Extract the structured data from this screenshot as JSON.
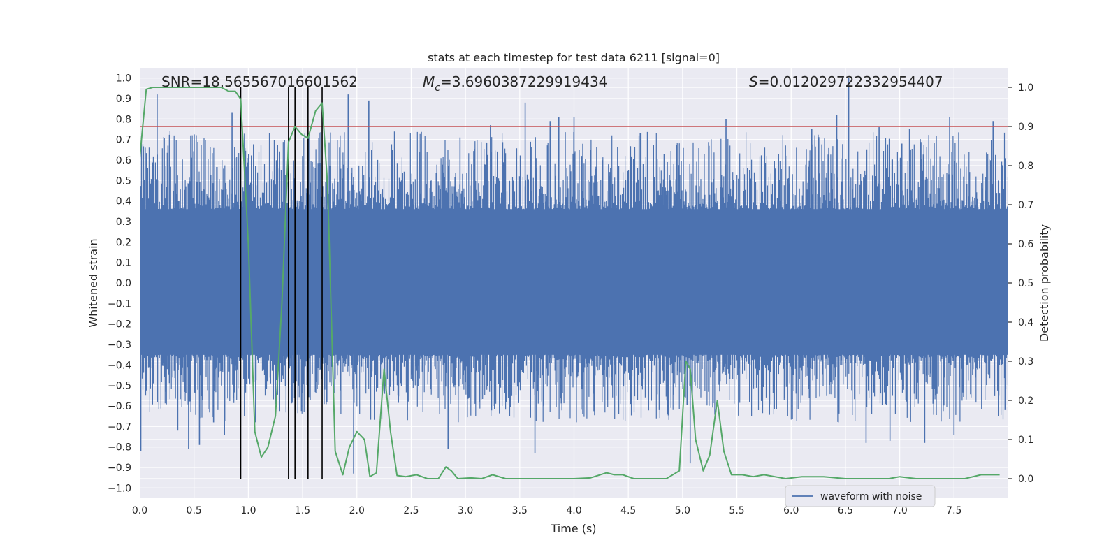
{
  "chart_data": {
    "type": "line",
    "title": "stats at each timestep for test data 6211 [signal=0]",
    "xlabel": "Time (s)",
    "ylabel_left": "Whitened strain",
    "ylabel_right": "Detection probability",
    "xlim": [
      0.0,
      8.0
    ],
    "ylim_left": [
      -1.05,
      1.05
    ],
    "ylim_right": [
      -0.05,
      1.05
    ],
    "grid": true,
    "x_ticks": [
      "0.0",
      "0.5",
      "1.0",
      "1.5",
      "2.0",
      "2.5",
      "3.0",
      "3.5",
      "4.0",
      "4.5",
      "5.0",
      "5.5",
      "6.0",
      "6.5",
      "7.0",
      "7.5"
    ],
    "y_ticks_left": [
      "1.0",
      "0.9",
      "0.8",
      "0.7",
      "0.6",
      "0.5",
      "0.4",
      "0.3",
      "0.2",
      "0.1",
      "0.0",
      "−0.1",
      "−0.2",
      "−0.3",
      "−0.4",
      "−0.5",
      "−0.6",
      "−0.7",
      "−0.8",
      "−0.9",
      "−1.0"
    ],
    "y_ticks_right": [
      "1.0",
      "0.9",
      "0.8",
      "0.7",
      "0.6",
      "0.5",
      "0.4",
      "0.3",
      "0.2",
      "0.1",
      "0.0"
    ],
    "annotations": {
      "snr": "SNR=18.565567016601562",
      "mc_symbol": "M",
      "mc_sub": "c",
      "mc_value": "=3.6960387229919434",
      "s_symbol": "S",
      "s_value": "=0.012029722332954407"
    },
    "legend": {
      "label": "waveform with noise",
      "placement": "lower-right"
    },
    "threshold": {
      "value": 0.9,
      "axis": "right",
      "color": "#c44e52"
    },
    "vertical_markers": [
      0.93,
      1.37,
      1.43,
      1.55,
      1.68
    ],
    "series": [
      {
        "name": "waveform with noise",
        "axis": "left",
        "color": "#4c72b0",
        "envelope": {
          "core": [
            -0.35,
            0.36
          ],
          "spike_range": [
            -0.93,
            1.0
          ]
        },
        "spikes": [
          [
            0.01,
            -0.82
          ],
          [
            0.05,
            0.66
          ],
          [
            0.16,
            0.92
          ],
          [
            0.26,
            0.67
          ],
          [
            0.35,
            -0.72
          ],
          [
            0.45,
            -0.81
          ],
          [
            0.47,
            0.72
          ],
          [
            0.55,
            -0.79
          ],
          [
            0.68,
            -0.68
          ],
          [
            0.78,
            -0.74
          ],
          [
            0.85,
            0.83
          ],
          [
            1.0,
            0.61
          ],
          [
            1.25,
            0.48
          ],
          [
            1.5,
            0.62
          ],
          [
            1.92,
            0.92
          ],
          [
            1.97,
            -0.93
          ],
          [
            2.11,
            0.89
          ],
          [
            2.27,
            -0.56
          ],
          [
            2.58,
            0.64
          ],
          [
            2.84,
            -0.81
          ],
          [
            2.95,
            0.71
          ],
          [
            3.23,
            0.77
          ],
          [
            3.55,
            0.88
          ],
          [
            3.64,
            -0.83
          ],
          [
            3.78,
            0.79
          ],
          [
            3.86,
            0.81
          ],
          [
            4.0,
            0.81
          ],
          [
            4.07,
            0.62
          ],
          [
            4.61,
            0.73
          ],
          [
            4.83,
            0.63
          ],
          [
            5.07,
            -0.88
          ],
          [
            5.4,
            0.8
          ],
          [
            6.05,
            0.66
          ],
          [
            6.19,
            0.75
          ],
          [
            6.42,
            0.82
          ],
          [
            6.53,
            1.0
          ],
          [
            6.69,
            -0.78
          ],
          [
            6.81,
            0.76
          ],
          [
            6.91,
            -0.77
          ],
          [
            7.02,
            0.68
          ],
          [
            7.09,
            0.75
          ],
          [
            7.23,
            -0.78
          ],
          [
            7.46,
            0.81
          ],
          [
            7.5,
            -0.74
          ],
          [
            7.86,
            0.79
          ],
          [
            7.97,
            -0.62
          ]
        ]
      },
      {
        "name": "detection probability",
        "axis": "right",
        "color": "#55a868",
        "x": [
          0.0,
          0.06,
          0.12,
          0.2,
          0.3,
          0.45,
          0.6,
          0.75,
          0.82,
          0.88,
          0.93,
          1.0,
          1.06,
          1.12,
          1.18,
          1.25,
          1.31,
          1.37,
          1.43,
          1.49,
          1.55,
          1.62,
          1.68,
          1.73,
          1.8,
          1.87,
          1.93,
          2.0,
          2.07,
          2.12,
          2.18,
          2.25,
          2.31,
          2.37,
          2.45,
          2.55,
          2.65,
          2.75,
          2.82,
          2.87,
          2.93,
          3.05,
          3.15,
          3.25,
          3.37,
          3.45,
          3.55,
          3.7,
          3.85,
          4.0,
          4.15,
          4.3,
          4.37,
          4.45,
          4.55,
          4.7,
          4.85,
          4.97,
          5.03,
          5.07,
          5.12,
          5.19,
          5.25,
          5.32,
          5.38,
          5.45,
          5.55,
          5.65,
          5.75,
          5.85,
          5.95,
          6.1,
          6.3,
          6.5,
          6.7,
          6.9,
          7.0,
          7.15,
          7.3,
          7.45,
          7.6,
          7.75,
          7.85,
          7.92
        ],
        "values": [
          0.82,
          0.995,
          1.0,
          1.0,
          1.0,
          1.0,
          1.0,
          1.0,
          0.99,
          0.99,
          0.97,
          0.6,
          0.12,
          0.055,
          0.08,
          0.16,
          0.45,
          0.86,
          0.9,
          0.88,
          0.87,
          0.94,
          0.96,
          0.75,
          0.07,
          0.01,
          0.08,
          0.12,
          0.1,
          0.005,
          0.015,
          0.28,
          0.12,
          0.008,
          0.005,
          0.01,
          0.0,
          0.0,
          0.03,
          0.02,
          0.0,
          0.002,
          0.0,
          0.01,
          0.0,
          0.0,
          0.0,
          0.0,
          0.0,
          0.0,
          0.002,
          0.015,
          0.01,
          0.01,
          0.0,
          0.0,
          0.0,
          0.02,
          0.3,
          0.28,
          0.1,
          0.02,
          0.06,
          0.2,
          0.07,
          0.01,
          0.01,
          0.005,
          0.01,
          0.005,
          0.0,
          0.005,
          0.005,
          0.0,
          0.0,
          0.0,
          0.005,
          0.0,
          0.0,
          0.0,
          0.0,
          0.01,
          0.01,
          0.01
        ]
      }
    ]
  }
}
